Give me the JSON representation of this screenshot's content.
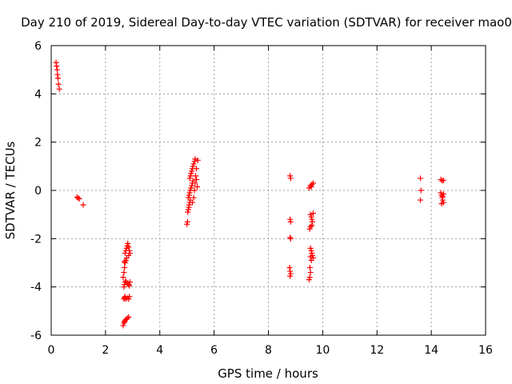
{
  "chart_data": {
    "type": "scatter",
    "title": "Day 210 of 2019, Sidereal Day-to-day VTEC variation (SDTVAR) for receiver mao0",
    "xlabel": "GPS time / hours",
    "ylabel": "SDTVAR / TECUs",
    "xlim": [
      0,
      16
    ],
    "ylim": [
      -6,
      6
    ],
    "xticks": [
      0,
      2,
      4,
      6,
      8,
      10,
      12,
      14,
      16
    ],
    "yticks": [
      -6,
      -4,
      -2,
      0,
      2,
      4,
      6
    ],
    "grid": true,
    "marker": "+",
    "color": "#ff0000",
    "series": [
      {
        "name": "SDTVAR",
        "points": [
          [
            0.18,
            5.3
          ],
          [
            0.2,
            5.15
          ],
          [
            0.22,
            5.0
          ],
          [
            0.23,
            4.8
          ],
          [
            0.25,
            4.65
          ],
          [
            0.27,
            4.4
          ],
          [
            0.3,
            4.2
          ],
          [
            0.95,
            -0.28
          ],
          [
            1.0,
            -0.32
          ],
          [
            1.03,
            -0.35
          ],
          [
            1.18,
            -0.6
          ],
          [
            2.65,
            -5.6
          ],
          [
            2.68,
            -5.5
          ],
          [
            2.7,
            -5.45
          ],
          [
            2.72,
            -5.4
          ],
          [
            2.75,
            -5.35
          ],
          [
            2.8,
            -5.3
          ],
          [
            2.85,
            -5.25
          ],
          [
            2.68,
            -4.5
          ],
          [
            2.7,
            -4.45
          ],
          [
            2.72,
            -4.4
          ],
          [
            2.75,
            -4.5
          ],
          [
            2.8,
            -4.45
          ],
          [
            2.85,
            -4.5
          ],
          [
            2.88,
            -4.4
          ],
          [
            2.68,
            -4.0
          ],
          [
            2.7,
            -3.9
          ],
          [
            2.73,
            -3.8
          ],
          [
            2.75,
            -3.75
          ],
          [
            2.8,
            -3.85
          ],
          [
            2.85,
            -3.9
          ],
          [
            2.88,
            -3.95
          ],
          [
            2.9,
            -3.8
          ],
          [
            2.65,
            -3.6
          ],
          [
            2.68,
            -3.4
          ],
          [
            2.7,
            -3.2
          ],
          [
            2.72,
            -3.0
          ],
          [
            2.75,
            -2.9
          ],
          [
            2.78,
            -2.8
          ],
          [
            2.7,
            -2.95
          ],
          [
            2.72,
            -2.6
          ],
          [
            2.75,
            -2.5
          ],
          [
            2.78,
            -2.4
          ],
          [
            2.8,
            -2.3
          ],
          [
            2.82,
            -2.2
          ],
          [
            2.85,
            -2.35
          ],
          [
            2.88,
            -2.5
          ],
          [
            2.9,
            -2.6
          ],
          [
            2.85,
            -2.7
          ],
          [
            5.0,
            -1.4
          ],
          [
            5.02,
            -1.3
          ],
          [
            5.03,
            -0.9
          ],
          [
            5.05,
            -0.8
          ],
          [
            5.07,
            -0.7
          ],
          [
            5.08,
            -0.6
          ],
          [
            5.1,
            -0.5
          ],
          [
            5.12,
            -0.4
          ],
          [
            5.05,
            -0.3
          ],
          [
            5.08,
            -0.2
          ],
          [
            5.1,
            -0.1
          ],
          [
            5.12,
            0.0
          ],
          [
            5.15,
            0.1
          ],
          [
            5.18,
            0.2
          ],
          [
            5.2,
            0.3
          ],
          [
            5.22,
            0.4
          ],
          [
            5.1,
            0.5
          ],
          [
            5.13,
            0.6
          ],
          [
            5.15,
            0.7
          ],
          [
            5.18,
            0.8
          ],
          [
            5.2,
            0.9
          ],
          [
            5.22,
            1.0
          ],
          [
            5.25,
            1.1
          ],
          [
            5.28,
            1.2
          ],
          [
            5.3,
            1.3
          ],
          [
            5.2,
            -0.5
          ],
          [
            5.25,
            -0.3
          ],
          [
            5.28,
            0.0
          ],
          [
            5.3,
            0.3
          ],
          [
            5.32,
            0.6
          ],
          [
            5.35,
            0.9
          ],
          [
            5.38,
            0.15
          ],
          [
            5.4,
            1.25
          ],
          [
            5.35,
            0.45
          ],
          [
            8.8,
            0.6
          ],
          [
            8.82,
            0.5
          ],
          [
            8.8,
            -1.2
          ],
          [
            8.82,
            -1.3
          ],
          [
            8.8,
            -1.95
          ],
          [
            8.82,
            -2.0
          ],
          [
            8.78,
            -3.2
          ],
          [
            8.8,
            -3.35
          ],
          [
            8.82,
            -3.45
          ],
          [
            8.8,
            -3.55
          ],
          [
            9.5,
            -3.7
          ],
          [
            9.52,
            -3.6
          ],
          [
            9.55,
            -3.4
          ],
          [
            9.53,
            -3.2
          ],
          [
            9.5,
            0.1
          ],
          [
            9.55,
            0.2
          ],
          [
            9.6,
            0.25
          ],
          [
            9.65,
            0.3
          ],
          [
            9.58,
            0.15
          ],
          [
            9.55,
            -1.0
          ],
          [
            9.58,
            -1.1
          ],
          [
            9.6,
            -1.2
          ],
          [
            9.62,
            -1.3
          ],
          [
            9.55,
            -1.5
          ],
          [
            9.52,
            -1.6
          ],
          [
            9.6,
            -1.45
          ],
          [
            9.65,
            -0.95
          ],
          [
            9.55,
            -2.4
          ],
          [
            9.58,
            -2.5
          ],
          [
            9.6,
            -2.6
          ],
          [
            9.62,
            -2.7
          ],
          [
            9.65,
            -2.8
          ],
          [
            9.58,
            -2.9
          ],
          [
            9.55,
            -2.75
          ],
          [
            13.6,
            0.5
          ],
          [
            13.62,
            0.0
          ],
          [
            13.6,
            -0.4
          ],
          [
            14.35,
            0.45
          ],
          [
            14.4,
            0.4
          ],
          [
            14.45,
            0.42
          ],
          [
            14.35,
            -0.1
          ],
          [
            14.38,
            -0.2
          ],
          [
            14.4,
            -0.3
          ],
          [
            14.42,
            -0.4
          ],
          [
            14.45,
            -0.5
          ],
          [
            14.38,
            -0.55
          ],
          [
            14.42,
            -0.25
          ],
          [
            14.45,
            -0.15
          ]
        ]
      }
    ]
  }
}
